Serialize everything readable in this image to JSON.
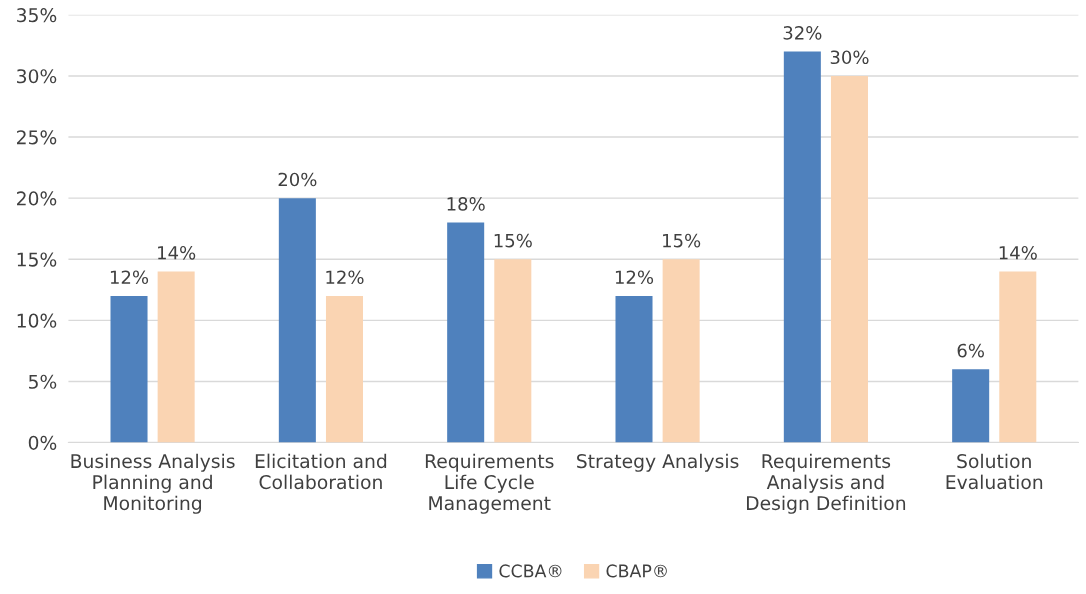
{
  "chart_data": {
    "type": "bar",
    "categories": [
      "Business Analysis\nPlanning and\nMonitoring",
      "Elicitation and\nCollaboration",
      "Requirements\nLife Cycle\nManagement",
      "Strategy Analysis",
      "Requirements\nAnalysis and\nDesign Definition",
      "Solution\nEvaluation"
    ],
    "series": [
      {
        "name": "CCBA®",
        "color": "#4f81bd",
        "values": [
          12,
          20,
          18,
          12,
          32,
          6
        ],
        "value_labels": [
          "12%",
          "20%",
          "18%",
          "12%",
          "32%",
          "6%"
        ]
      },
      {
        "name": "CBAP®",
        "color": "#fad4b2",
        "values": [
          14,
          12,
          15,
          15,
          30,
          14
        ],
        "value_labels": [
          "14%",
          "12%",
          "15%",
          "15%",
          "30%",
          "14%"
        ]
      }
    ],
    "ylim": [
      0,
      35
    ],
    "yticks": [
      {
        "value": 0,
        "label": "0%"
      },
      {
        "value": 5,
        "label": "5%"
      },
      {
        "value": 10,
        "label": "10%"
      },
      {
        "value": 15,
        "label": "15%"
      },
      {
        "value": 20,
        "label": "20%"
      },
      {
        "value": 25,
        "label": "25%"
      },
      {
        "value": 30,
        "label": "30%"
      },
      {
        "value": 35,
        "label": "35%"
      }
    ],
    "grid": "y",
    "legend": "bottom"
  }
}
